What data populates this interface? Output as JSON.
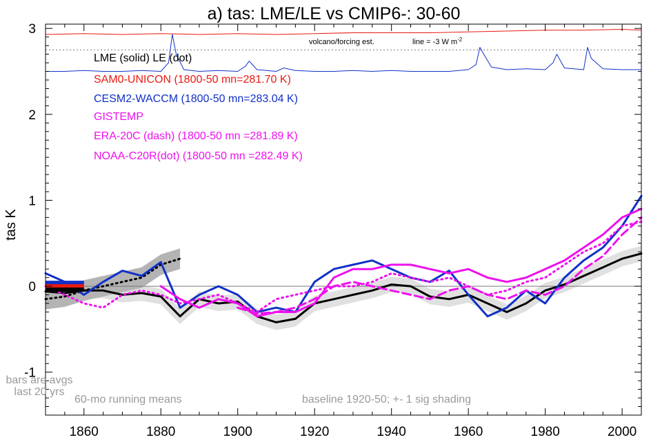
{
  "chart_data": {
    "type": "line",
    "title": "a) tas: LME/LE vs CMIP6-: 30-60",
    "ylabel": "tas K",
    "xlabel": "",
    "xlim": [
      1850,
      2005
    ],
    "ylim": [
      -1.5,
      3.05
    ],
    "x_ticks": [
      1860,
      1880,
      1900,
      1920,
      1940,
      1960,
      1980,
      2000
    ],
    "x_tick_labels": [
      "1860",
      "1880",
      "1900",
      "1920",
      "1940",
      "1960",
      "1980",
      "2000"
    ],
    "y_ticks": [
      -1,
      0,
      1,
      2,
      3
    ],
    "y_tick_labels": [
      "-1",
      "0",
      "1",
      "2",
      "3"
    ],
    "grid": false,
    "legend_position": "top-left",
    "legend": [
      {
        "text": "LME (solid)    LE (dot)",
        "color": "#000000"
      },
      {
        "text": "SAM0-UNICON (1800-50 mn=281.70 K)",
        "color": "#e8190f"
      },
      {
        "text": "CESM2-WACCM (1800-50 mn=283.04 K)",
        "color": "#1030c8"
      },
      {
        "text": "GISTEMP",
        "color": "#ee10ee"
      },
      {
        "text": "ERA-20C (dash) (1800-50 mn =281.89 K)",
        "color": "#ee10ee"
      },
      {
        "text": "NOAA-C20R(dot) (1800-50 mn =282.49 K)",
        "color": "#ee10ee"
      }
    ],
    "annotations": {
      "volcano": "volcano/forcing est.",
      "line_note": "line = -3 W m",
      "line_note_sup": "-2",
      "bars": [
        "bars are avgs",
        "last 20 yrs"
      ],
      "running": "60-mo running means",
      "baseline": "baseline 1920-50; +- 1 sig shading"
    },
    "reference_lines": {
      "zero": 0,
      "forcing_ref": 2.75
    },
    "series": [
      {
        "name": "LME",
        "color": "#000000",
        "style": "solid",
        "x": [
          1850,
          1855,
          1860,
          1865,
          1870,
          1875,
          1880,
          1885,
          1890,
          1895,
          1900,
          1905,
          1910,
          1915,
          1920,
          1925,
          1930,
          1935,
          1940,
          1945,
          1950,
          1955,
          1960,
          1965,
          1970,
          1975,
          1980,
          1985,
          1990,
          1995,
          2000,
          2005
        ],
        "y": [
          -0.06,
          -0.08,
          -0.05,
          -0.05,
          -0.1,
          -0.08,
          -0.12,
          -0.35,
          -0.15,
          -0.2,
          -0.18,
          -0.35,
          -0.42,
          -0.38,
          -0.2,
          -0.15,
          -0.1,
          -0.05,
          0.02,
          0.0,
          -0.12,
          -0.15,
          -0.1,
          -0.2,
          -0.3,
          -0.2,
          -0.05,
          0.02,
          0.12,
          0.22,
          0.32,
          0.38
        ]
      },
      {
        "name": "LE",
        "color": "#000000",
        "style": "dot",
        "x": [
          1850,
          1855,
          1860,
          1865,
          1870,
          1875,
          1880,
          1885
        ],
        "y": [
          -0.15,
          -0.12,
          -0.05,
          0.0,
          0.05,
          0.1,
          0.25,
          0.32
        ]
      },
      {
        "name": "CESM2-WACCM",
        "color": "#1030c8",
        "style": "solid",
        "x": [
          1850,
          1855,
          1860,
          1865,
          1870,
          1875,
          1880,
          1885,
          1890,
          1895,
          1900,
          1905,
          1910,
          1915,
          1920,
          1925,
          1930,
          1935,
          1940,
          1945,
          1950,
          1955,
          1960,
          1965,
          1970,
          1975,
          1980,
          1985,
          1990,
          1995,
          2000,
          2005
        ],
        "y": [
          0.15,
          0.05,
          -0.1,
          0.05,
          0.18,
          0.12,
          0.28,
          -0.25,
          -0.1,
          0.0,
          -0.1,
          -0.3,
          -0.25,
          -0.3,
          0.05,
          0.2,
          0.25,
          0.3,
          0.2,
          0.1,
          0.05,
          0.18,
          -0.1,
          -0.35,
          -0.25,
          -0.05,
          -0.2,
          0.1,
          0.3,
          0.45,
          0.7,
          1.05
        ]
      },
      {
        "name": "GISTEMP",
        "color": "#ee10ee",
        "style": "solid",
        "x": [
          1880,
          1885,
          1890,
          1895,
          1900,
          1905,
          1910,
          1915,
          1920,
          1925,
          1930,
          1935,
          1940,
          1945,
          1950,
          1955,
          1960,
          1965,
          1970,
          1975,
          1980,
          1985,
          1990,
          1995,
          2000,
          2005
        ],
        "y": [
          0.0,
          -0.15,
          -0.25,
          -0.15,
          -0.2,
          -0.35,
          -0.3,
          -0.3,
          -0.2,
          0.1,
          0.2,
          0.2,
          0.25,
          0.25,
          0.2,
          0.15,
          0.2,
          0.1,
          0.05,
          0.1,
          0.2,
          0.3,
          0.45,
          0.6,
          0.8,
          0.9
        ]
      },
      {
        "name": "ERA-20C",
        "color": "#ee10ee",
        "style": "dash",
        "x": [
          1900,
          1905,
          1910,
          1915,
          1920,
          1925,
          1930,
          1935,
          1940,
          1945,
          1950,
          1955,
          1960,
          1965,
          1970,
          1975,
          1980,
          1985,
          1990,
          1995,
          2000,
          2005
        ],
        "y": [
          -0.25,
          -0.32,
          -0.3,
          -0.25,
          -0.15,
          0.0,
          0.05,
          0.0,
          -0.05,
          -0.1,
          -0.15,
          -0.05,
          0.0,
          -0.1,
          -0.15,
          -0.05,
          -0.1,
          0.0,
          0.2,
          0.35,
          0.6,
          0.8
        ]
      },
      {
        "name": "NOAA-C20R",
        "color": "#ee10ee",
        "style": "dot",
        "x": [
          1850,
          1855,
          1860,
          1865,
          1870,
          1875,
          1880,
          1885,
          1890,
          1895,
          1900,
          1905,
          1910,
          1915,
          1920,
          1925,
          1930,
          1935,
          1940,
          1945,
          1950,
          1955,
          1960,
          1965,
          1970,
          1975,
          1980,
          1985,
          1990,
          1995,
          2000,
          2005
        ],
        "y": [
          0.0,
          -0.1,
          -0.2,
          -0.25,
          -0.1,
          -0.05,
          -0.1,
          -0.2,
          -0.15,
          -0.1,
          -0.2,
          -0.3,
          -0.15,
          -0.1,
          -0.05,
          0.0,
          0.0,
          0.05,
          0.15,
          0.1,
          0.05,
          0.1,
          0.0,
          -0.1,
          -0.05,
          0.05,
          0.1,
          0.25,
          0.4,
          0.5,
          0.7,
          0.75
        ]
      },
      {
        "name": "SAM0-UNICON forcing",
        "color": "#e8190f",
        "style": "solid",
        "x": [
          1850,
          1860,
          1870,
          1880,
          1890,
          1900,
          1910,
          1920,
          1930,
          1940,
          1950,
          1960,
          1970,
          1980,
          1990,
          2000,
          2005
        ],
        "y": [
          2.93,
          2.94,
          2.93,
          2.94,
          2.93,
          2.94,
          2.93,
          2.94,
          2.95,
          2.95,
          2.95,
          2.96,
          2.97,
          2.98,
          2.98,
          2.99,
          2.98
        ]
      },
      {
        "name": "CESM2-WACCM forcing",
        "color": "#1030c8",
        "style": "solid",
        "x": [
          1850,
          1855,
          1860,
          1865,
          1870,
          1875,
          1880,
          1882,
          1883,
          1884,
          1886,
          1890,
          1895,
          1900,
          1902,
          1903,
          1905,
          1910,
          1912,
          1915,
          1920,
          1925,
          1930,
          1935,
          1940,
          1945,
          1950,
          1955,
          1960,
          1962,
          1963,
          1964,
          1966,
          1970,
          1975,
          1980,
          1982,
          1983,
          1985,
          1990,
          1991,
          1992,
          1995,
          2000,
          2005
        ],
        "y": [
          2.5,
          2.5,
          2.51,
          2.5,
          2.5,
          2.51,
          2.5,
          2.6,
          2.93,
          2.7,
          2.52,
          2.5,
          2.51,
          2.5,
          2.56,
          2.62,
          2.52,
          2.5,
          2.54,
          2.51,
          2.5,
          2.5,
          2.51,
          2.5,
          2.51,
          2.5,
          2.5,
          2.5,
          2.52,
          2.58,
          2.78,
          2.7,
          2.55,
          2.52,
          2.53,
          2.52,
          2.6,
          2.7,
          2.54,
          2.52,
          2.78,
          2.65,
          2.53,
          2.52,
          2.52
        ]
      }
    ],
    "bars": [
      {
        "name": "CESM2-WACCM bar",
        "color": "#1030c8",
        "y": 0.04
      },
      {
        "name": "SAM0-UNICON bar",
        "color": "#e8190f",
        "y": 0.0
      },
      {
        "name": "LME bar",
        "color": "#000000",
        "y": -0.04
      }
    ]
  }
}
